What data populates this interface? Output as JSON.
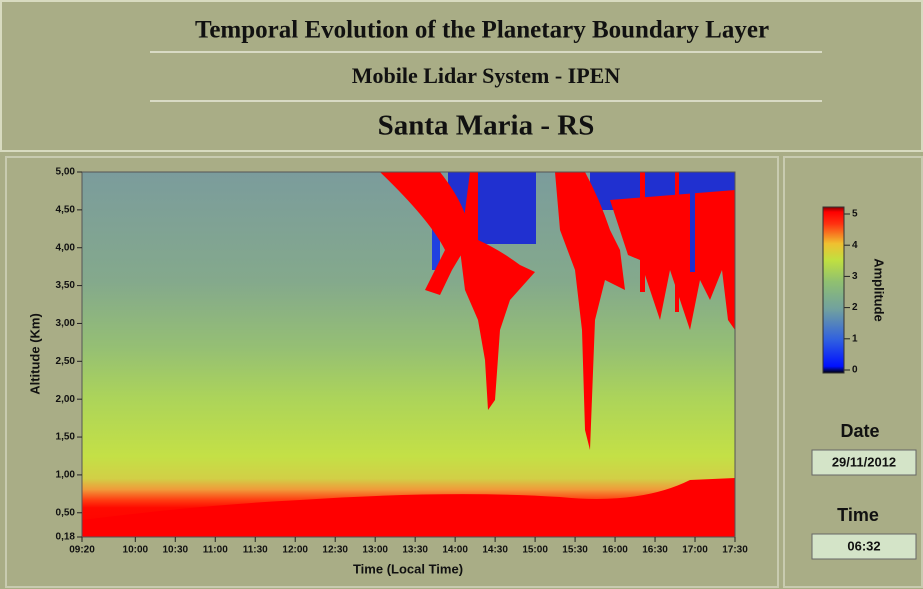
{
  "header": {
    "title": "Temporal Evolution of the Planetary Boundary Layer",
    "subtitle": "Mobile Lidar System - IPEN",
    "location": "Santa Maria - RS"
  },
  "chart_data": {
    "type": "heatmap",
    "x_label": "Time (Local Time)",
    "y_label": "Altitude (Km)",
    "xlim": [
      560,
      1050
    ],
    "xticks": [
      {
        "value": 560,
        "label": "09:20"
      },
      {
        "value": 600,
        "label": "10:00"
      },
      {
        "value": 630,
        "label": "10:30"
      },
      {
        "value": 660,
        "label": "11:00"
      },
      {
        "value": 690,
        "label": "11:30"
      },
      {
        "value": 720,
        "label": "12:00"
      },
      {
        "value": 750,
        "label": "12:30"
      },
      {
        "value": 780,
        "label": "13:00"
      },
      {
        "value": 810,
        "label": "13:30"
      },
      {
        "value": 840,
        "label": "14:00"
      },
      {
        "value": 870,
        "label": "14:30"
      },
      {
        "value": 900,
        "label": "15:00"
      },
      {
        "value": 930,
        "label": "15:30"
      },
      {
        "value": 960,
        "label": "16:00"
      },
      {
        "value": 990,
        "label": "16:30"
      },
      {
        "value": 1020,
        "label": "17:00"
      },
      {
        "value": 1050,
        "label": "17:30"
      }
    ],
    "ylim": [
      0.18,
      5
    ],
    "yticks": [
      {
        "value": 0.18,
        "label": "0,18"
      },
      {
        "value": 0.5,
        "label": "0,50"
      },
      {
        "value": 1,
        "label": "1,00"
      },
      {
        "value": 1.5,
        "label": "1,50"
      },
      {
        "value": 2,
        "label": "2,00"
      },
      {
        "value": 2.5,
        "label": "2,50"
      },
      {
        "value": 3,
        "label": "3,00"
      },
      {
        "value": 3.5,
        "label": "3,50"
      },
      {
        "value": 4,
        "label": "4,00"
      },
      {
        "value": 4.5,
        "label": "4,50"
      },
      {
        "value": 5,
        "label": "5,00"
      }
    ],
    "colorbar": {
      "label": "Amplitude",
      "lim": [
        0,
        5
      ],
      "ticks": [
        0,
        1,
        2,
        3,
        4,
        5
      ]
    }
  },
  "date": {
    "label": "Date",
    "value": "29/11/2012"
  },
  "time": {
    "label": "Time",
    "value": "06:32"
  }
}
